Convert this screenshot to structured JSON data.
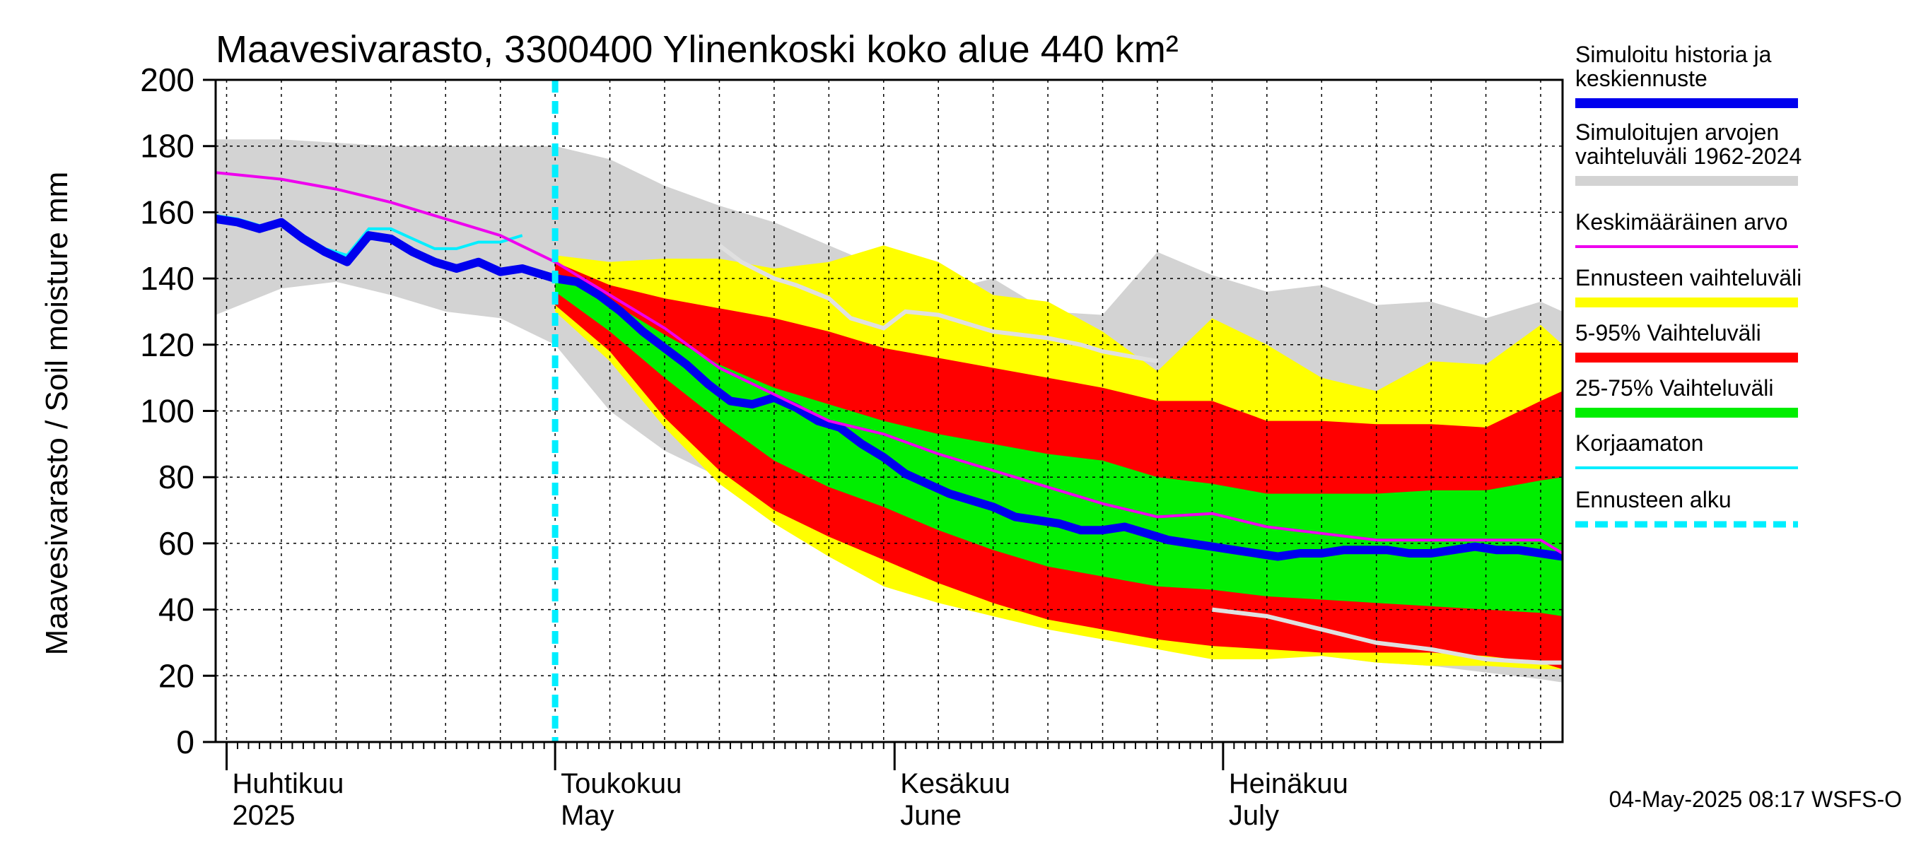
{
  "chart_data": {
    "type": "area",
    "title": "Maavesivarasto, 3300400 Ylinenkoski koko alue 440 km²",
    "ylabel": "Maavesivarasto / Soil moisture   mm",
    "ylim": [
      0,
      200
    ],
    "yticks": [
      0,
      20,
      40,
      60,
      80,
      100,
      120,
      140,
      160,
      180,
      200
    ],
    "x_unit": "days since 2025-04-01",
    "xlim": [
      -1,
      122
    ],
    "forecast_start": 30,
    "months": [
      {
        "day": 0,
        "label1": "Huhtikuu",
        "label2": "2025"
      },
      {
        "day": 30,
        "label1": "Toukokuu",
        "label2": "May"
      },
      {
        "day": 61,
        "label1": "Kesäkuu",
        "label2": "June"
      },
      {
        "day": 91,
        "label1": "Heinäkuu",
        "label2": "July"
      }
    ],
    "series": {
      "historical_range": {
        "x": [
          -1,
          5,
          10,
          15,
          20,
          25,
          30,
          35,
          40,
          45,
          50,
          55,
          60,
          65,
          70,
          75,
          80,
          85,
          90,
          95,
          100,
          105,
          110,
          115,
          120,
          122
        ],
        "upper": [
          182,
          182,
          181,
          180,
          180,
          180,
          180,
          176,
          168,
          162,
          157,
          150,
          143,
          136,
          140,
          130,
          129,
          148,
          141,
          136,
          138,
          132,
          133,
          128,
          133,
          130
        ],
        "lower": [
          129,
          137,
          139,
          135,
          130,
          128,
          120,
          100,
          88,
          80,
          68,
          60,
          52,
          46,
          43,
          40,
          37,
          34,
          30,
          28,
          26,
          24,
          23,
          21,
          19,
          18
        ]
      },
      "forecast_range": {
        "x": [
          30,
          35,
          40,
          45,
          50,
          55,
          60,
          65,
          70,
          75,
          80,
          85,
          90,
          95,
          100,
          105,
          110,
          115,
          120,
          122
        ],
        "upper": [
          147,
          145,
          146,
          146,
          143,
          145,
          150,
          145,
          135,
          133,
          124,
          112,
          128,
          120,
          110,
          106,
          115,
          114,
          126,
          120
        ],
        "lower": [
          130,
          115,
          95,
          78,
          66,
          56,
          47,
          42,
          38,
          34,
          31,
          28,
          25,
          25,
          26,
          24,
          23,
          23,
          22,
          22
        ]
      },
      "band_5_95": {
        "x": [
          30,
          35,
          40,
          45,
          50,
          55,
          60,
          65,
          70,
          75,
          80,
          85,
          90,
          95,
          100,
          105,
          110,
          115,
          120,
          122
        ],
        "upper": [
          145,
          138,
          134,
          131,
          128,
          124,
          119,
          116,
          113,
          110,
          107,
          103,
          103,
          97,
          97,
          96,
          96,
          95,
          103,
          106
        ],
        "lower": [
          132,
          118,
          98,
          82,
          70,
          62,
          55,
          48,
          42,
          37,
          34,
          31,
          29,
          28,
          27,
          27,
          27,
          26,
          24,
          22
        ]
      },
      "band_25_75": {
        "x": [
          30,
          35,
          40,
          45,
          50,
          55,
          60,
          65,
          70,
          75,
          80,
          85,
          90,
          95,
          100,
          105,
          110,
          115,
          120,
          122
        ],
        "upper": [
          142,
          133,
          123,
          114,
          107,
          102,
          97,
          93,
          90,
          87,
          85,
          80,
          78,
          75,
          75,
          75,
          76,
          76,
          79,
          80
        ],
        "lower": [
          136,
          124,
          110,
          97,
          85,
          77,
          71,
          64,
          58,
          53,
          50,
          47,
          46,
          44,
          43,
          42,
          41,
          40,
          39,
          38
        ]
      },
      "mean": {
        "x": [
          -1,
          5,
          10,
          15,
          20,
          25,
          30,
          35,
          40,
          45,
          50,
          55,
          60,
          65,
          70,
          75,
          80,
          85,
          90,
          95,
          100,
          105,
          110,
          115,
          120,
          122
        ],
        "y": [
          172,
          170,
          167,
          163,
          158,
          153,
          145,
          135,
          125,
          113,
          105,
          97,
          93,
          87,
          82,
          77,
          72,
          68,
          69,
          65,
          63,
          61,
          61,
          61,
          61,
          57
        ]
      },
      "median_forecast": {
        "x": [
          -1,
          1,
          3,
          5,
          7,
          9,
          11,
          13,
          15,
          17,
          19,
          21,
          23,
          25,
          27,
          29,
          30,
          32,
          34,
          36,
          38,
          40,
          42,
          44,
          46,
          48,
          50,
          52,
          54,
          56,
          58,
          60,
          62,
          64,
          66,
          68,
          70,
          72,
          74,
          76,
          78,
          80,
          82,
          84,
          86,
          88,
          90,
          92,
          94,
          96,
          98,
          100,
          102,
          104,
          106,
          108,
          110,
          112,
          114,
          116,
          118,
          120,
          122
        ],
        "y": [
          158,
          157,
          155,
          157,
          152,
          148,
          145,
          153,
          152,
          148,
          145,
          143,
          145,
          142,
          143,
          141,
          140,
          139,
          135,
          130,
          124,
          119,
          114,
          108,
          103,
          102,
          104,
          101,
          97,
          95,
          90,
          86,
          81,
          78,
          75,
          73,
          71,
          68,
          67,
          66,
          64,
          64,
          65,
          63,
          61,
          60,
          59,
          58,
          57,
          56,
          57,
          57,
          58,
          58,
          58,
          57,
          57,
          58,
          59,
          58,
          58,
          57,
          56
        ]
      },
      "uncorrected": {
        "x": [
          -1,
          1,
          3,
          5,
          7,
          9,
          11,
          13,
          15,
          17,
          19,
          21,
          23,
          25,
          27
        ],
        "y": [
          159,
          158,
          156,
          157,
          153,
          149,
          147,
          155,
          155,
          152,
          149,
          149,
          151,
          151,
          153
        ]
      },
      "observed_history_lower": {
        "x": [
          45,
          47,
          50,
          52,
          55,
          57,
          60,
          62,
          65,
          70,
          75,
          78,
          80,
          85,
          90,
          95,
          100,
          105,
          110,
          115,
          120,
          122
        ],
        "y": [
          150,
          145,
          140,
          138,
          134,
          128,
          125,
          130,
          129,
          124,
          122,
          120,
          118,
          115,
          40,
          38,
          34,
          30,
          28,
          25,
          24,
          24
        ]
      }
    },
    "colors": {
      "historical_range": "#d3d3d3",
      "forecast_range": "#ffff00",
      "band_5_95": "#ff0000",
      "band_25_75": "#00ee00",
      "median": "#0000ee",
      "mean": "#ee00ee",
      "uncorrected": "#00eeff",
      "forecast_start": "#00eeff",
      "observed": "#e0e0e0"
    },
    "legend": [
      {
        "key": "median",
        "line1": "Simuloitu historia ja",
        "line2": "keskiennuste",
        "style": "thick"
      },
      {
        "key": "historical_range",
        "line1": "Simuloitujen arvojen",
        "line2": "vaihteluväli 1962-2024",
        "style": "thick"
      },
      {
        "key": "mean",
        "line1": "Keskimääräinen arvo",
        "line2": "",
        "style": "thin"
      },
      {
        "key": "forecast_range",
        "line1": "Ennusteen vaihteluväli",
        "line2": "",
        "style": "thick"
      },
      {
        "key": "band_5_95",
        "line1": "5-95% Vaihteluväli",
        "line2": "",
        "style": "thick"
      },
      {
        "key": "band_25_75",
        "line1": "25-75% Vaihteluväli",
        "line2": "",
        "style": "thick"
      },
      {
        "key": "uncorrected",
        "line1": "Korjaamaton",
        "line2": "",
        "style": "thin"
      },
      {
        "key": "forecast_start",
        "line1": "Ennusteen alku",
        "line2": "",
        "style": "dashed"
      }
    ],
    "footer": "04-May-2025 08:17 WSFS-O"
  }
}
